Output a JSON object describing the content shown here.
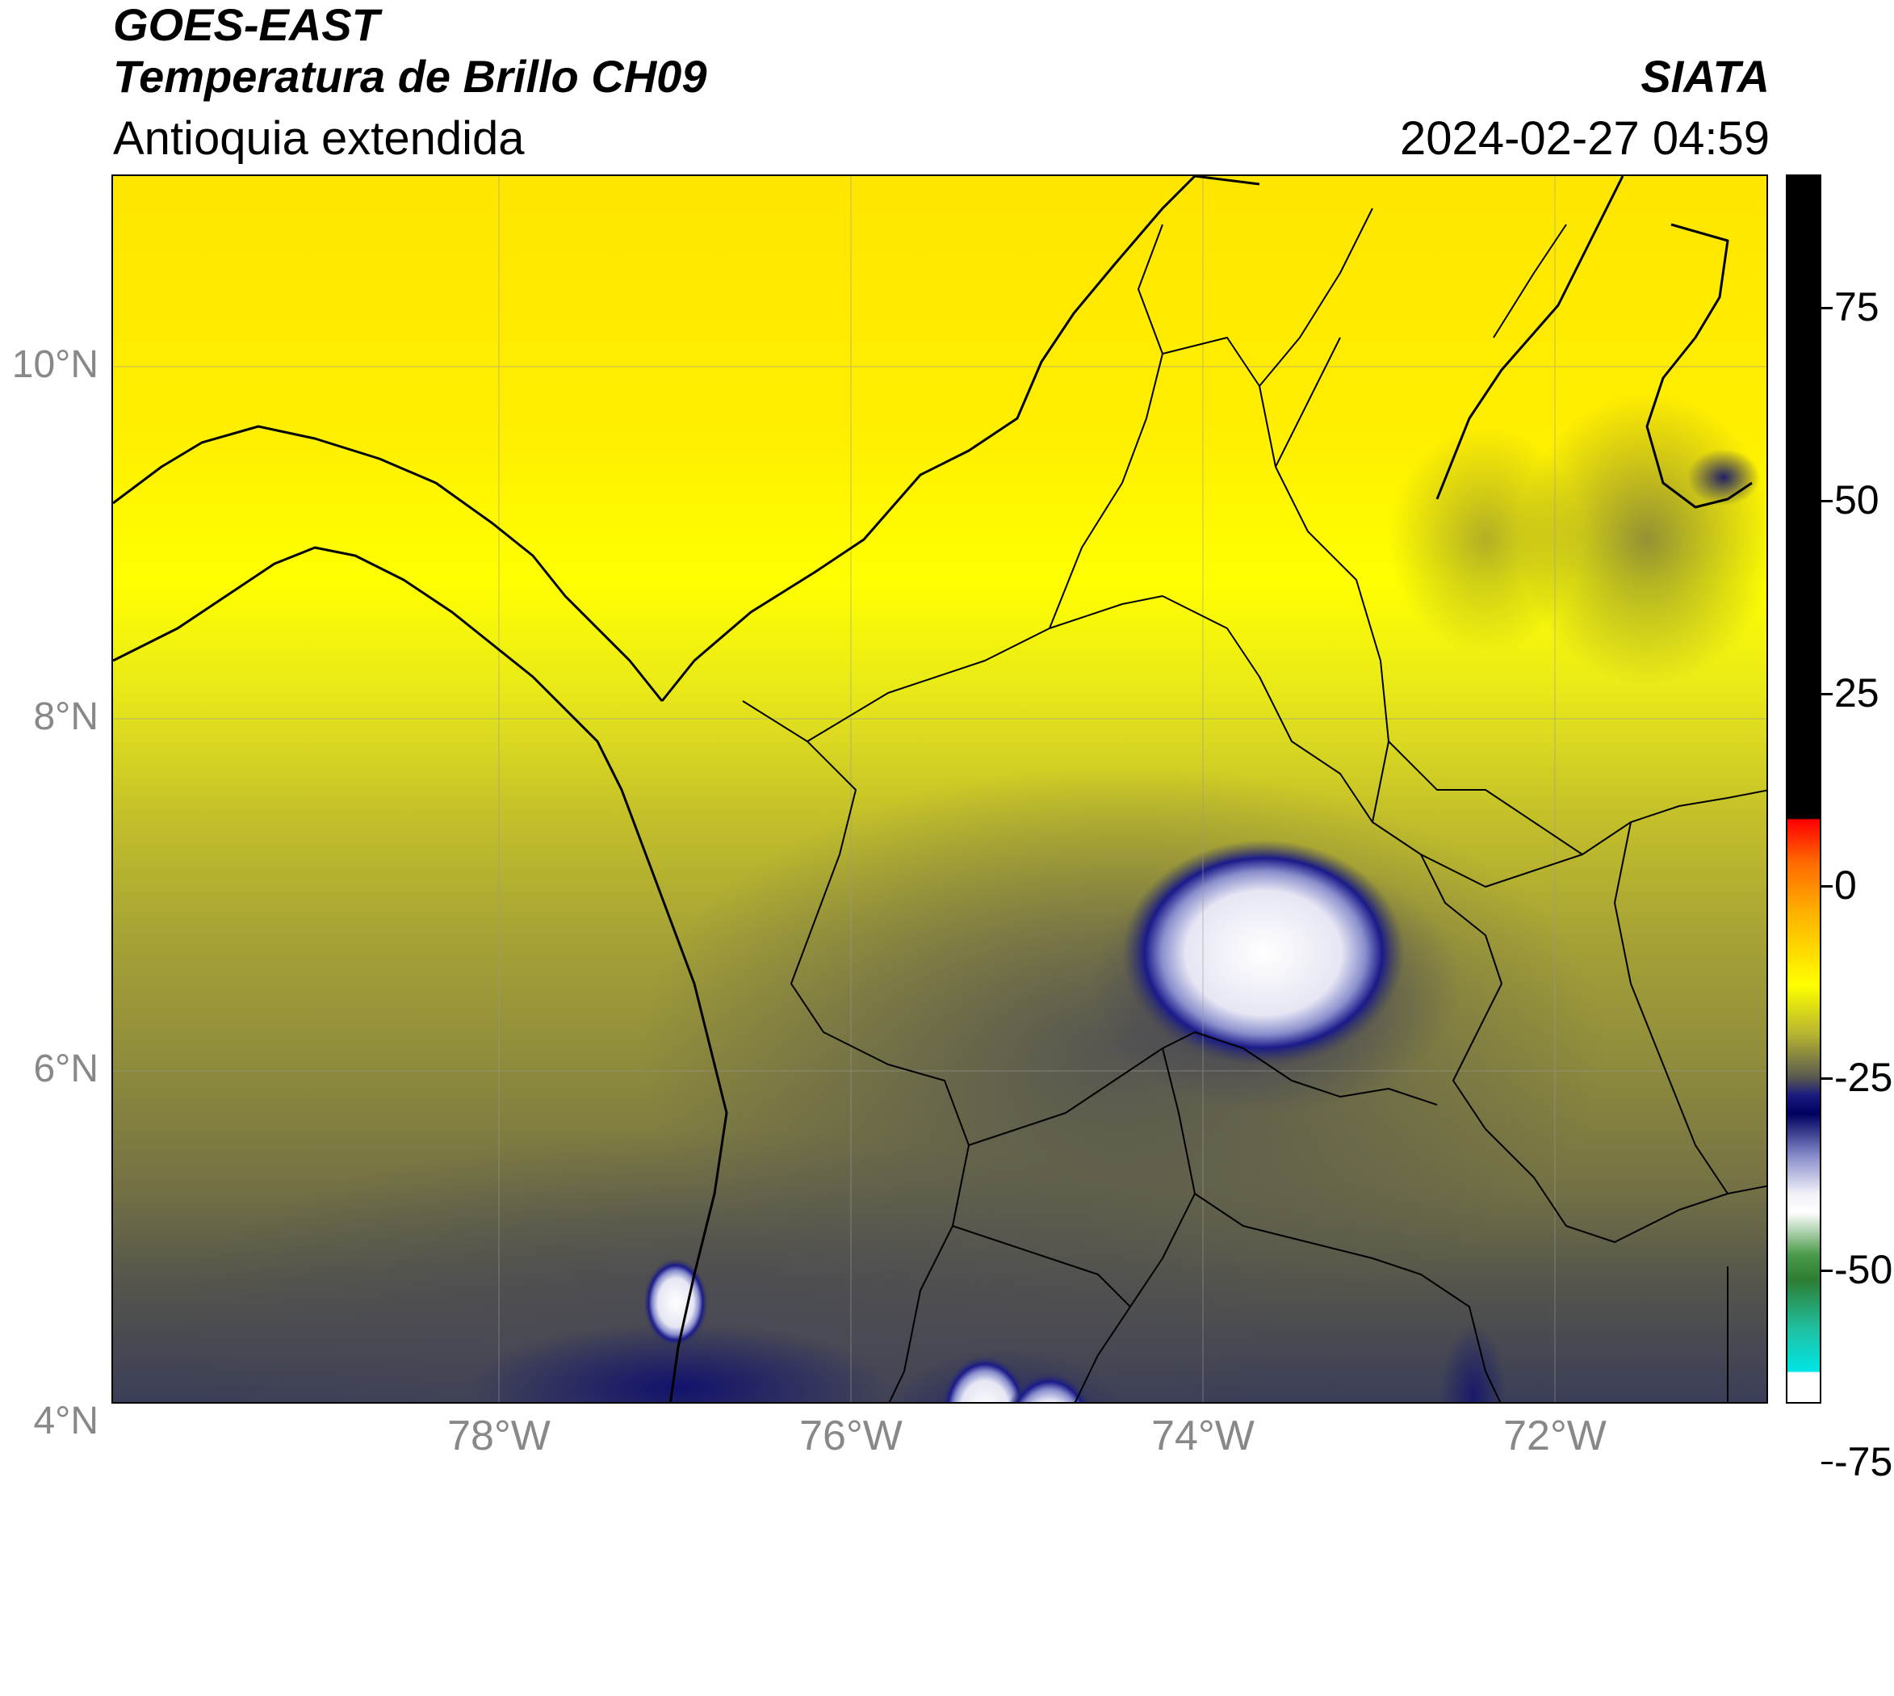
{
  "header": {
    "satellite": "GOES-EAST",
    "product": "Temperatura de Brillo CH09",
    "region": "Antioquia extendida",
    "organization": "SIATA",
    "timestamp": "2024-02-27 04:59"
  },
  "map": {
    "lat_labels": [
      "10°N",
      "8°N",
      "6°N",
      "4°N"
    ],
    "lon_labels": [
      "78°W",
      "76°W",
      "74°W",
      "72°W"
    ]
  },
  "colorbar": {
    "tick_labels": [
      "75",
      "50",
      "25",
      "0",
      "-25",
      "-50",
      "-75"
    ],
    "colors": {
      "black": "#000000",
      "red": "#ff0000",
      "orange": "#ff8800",
      "yellow": "#ffff00",
      "olive": "#8b8b3a",
      "gray": "#4a4a4a",
      "navy": "#00005f",
      "white": "#ffffff",
      "green": "#2e7d32",
      "cyan": "#00e5e5"
    }
  }
}
